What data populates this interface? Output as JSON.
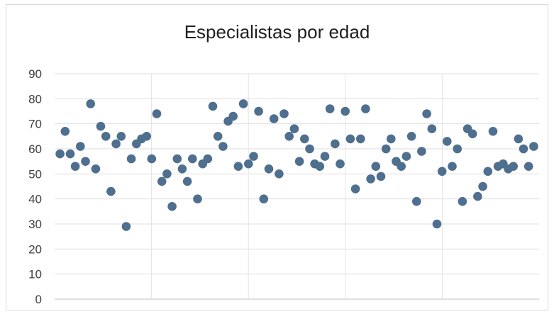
{
  "chart_data": {
    "type": "scatter",
    "title": "Especialistas por edad",
    "xlabel": "",
    "ylabel": "",
    "ylim": [
      0,
      90
    ],
    "yticks": [
      "0",
      "10",
      "20",
      "30",
      "40",
      "50",
      "60",
      "70",
      "80",
      "90"
    ],
    "grid": true,
    "legend": "none",
    "marker_color": "#4f6f8f",
    "x": [
      1,
      2,
      3,
      4,
      5,
      6,
      7,
      8,
      9,
      10,
      11,
      12,
      13,
      14,
      15,
      16,
      17,
      18,
      19,
      20,
      21,
      22,
      23,
      24,
      25,
      26,
      27,
      28,
      29,
      30,
      31,
      32,
      33,
      34,
      35,
      36,
      37,
      38,
      39,
      40,
      41,
      42,
      43,
      44,
      45,
      46,
      47,
      48,
      49,
      50,
      51,
      52,
      53,
      54,
      55,
      56,
      57,
      58,
      59,
      60,
      61,
      62,
      63,
      64,
      65,
      66,
      67,
      68,
      69,
      70,
      71,
      72,
      73,
      74,
      75,
      76,
      77,
      78,
      79,
      80,
      81,
      82,
      83,
      84,
      85,
      86,
      87,
      88,
      89,
      90,
      91,
      92,
      93,
      94
    ],
    "y": [
      58,
      67,
      58,
      53,
      61,
      55,
      78,
      52,
      69,
      65,
      43,
      62,
      65,
      29,
      56,
      62,
      64,
      65,
      56,
      74,
      47,
      50,
      37,
      56,
      52,
      47,
      56,
      40,
      54,
      56,
      77,
      65,
      61,
      71,
      73,
      53,
      78,
      54,
      57,
      75,
      40,
      52,
      72,
      50,
      74,
      65,
      68,
      55,
      64,
      60,
      54,
      53,
      57,
      76,
      62,
      54,
      75,
      64,
      44,
      64,
      76,
      48,
      53,
      49,
      60,
      64,
      55,
      53,
      57,
      65,
      39,
      59,
      74,
      68,
      30,
      51,
      63,
      53,
      60,
      39,
      68,
      66,
      41,
      45,
      51,
      67,
      53,
      54,
      52,
      53,
      64,
      60,
      53,
      61
    ]
  }
}
